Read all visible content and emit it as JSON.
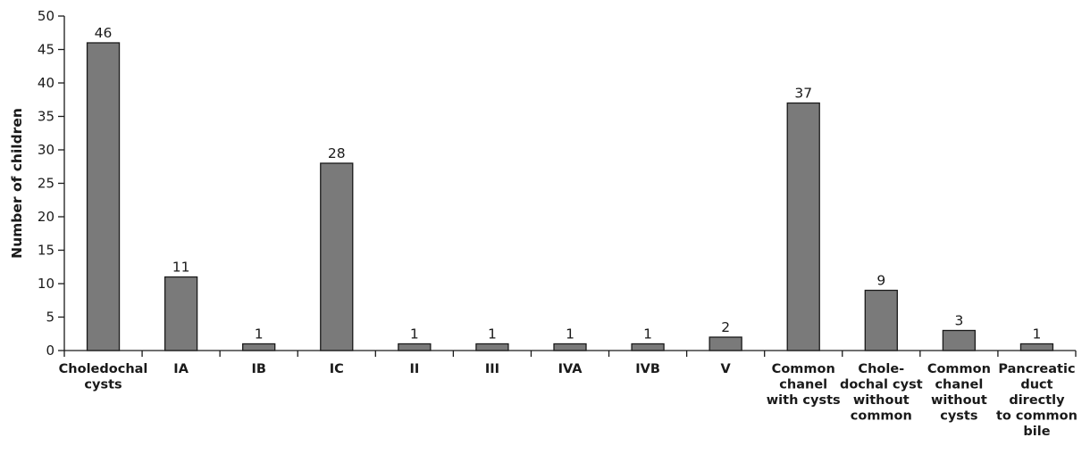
{
  "chart_data": {
    "type": "bar",
    "title": "",
    "xlabel": "",
    "ylabel": "Number of children",
    "ylim": [
      0,
      50
    ],
    "yticks": [
      0,
      5,
      10,
      15,
      20,
      25,
      30,
      35,
      40,
      45,
      50
    ],
    "grid": false,
    "legend": "none",
    "bar_color": "#7a7a7a",
    "categories": [
      [
        "Choledochal",
        "cysts"
      ],
      [
        "IA"
      ],
      [
        "IB"
      ],
      [
        "IC"
      ],
      [
        "II"
      ],
      [
        "III"
      ],
      [
        "IVA"
      ],
      [
        "IVB"
      ],
      [
        "V"
      ],
      [
        "Common",
        "chanel",
        "with cysts"
      ],
      [
        "Chole-",
        "dochal cyst",
        "without",
        "common"
      ],
      [
        "Common",
        "chanel",
        "without",
        "cysts"
      ],
      [
        "Pancreatic",
        "duct",
        "directly",
        "to common",
        "bile"
      ]
    ],
    "values": [
      46,
      11,
      1,
      28,
      1,
      1,
      1,
      1,
      2,
      37,
      9,
      3,
      1
    ],
    "data_labels": [
      "46",
      "11",
      "1",
      "28",
      "1",
      "1",
      "1",
      "1",
      "2",
      "37",
      "9",
      "3",
      "1"
    ]
  }
}
